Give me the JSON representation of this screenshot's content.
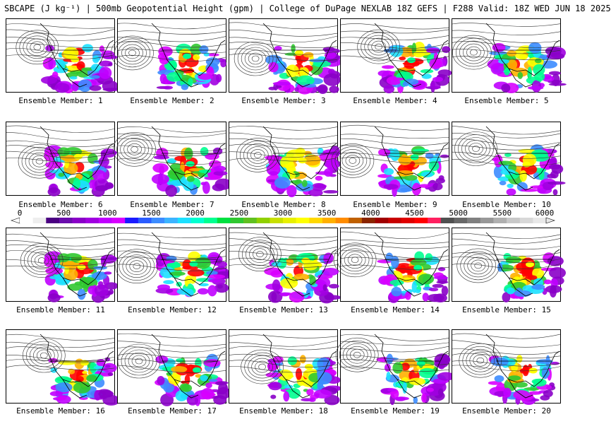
{
  "title": "SBCAPE (J kg⁻¹) | 500mb Geopotential Height (gpm) | College of DuPage NEXLAB 18Z GEFS | F288 Valid: 18Z WED JUN 18 2025",
  "members": [
    {
      "label": "Ensemble Member: 1"
    },
    {
      "label": "Ensemble Member: 2"
    },
    {
      "label": "Ensemble Member: 3"
    },
    {
      "label": "Ensemble Member: 4"
    },
    {
      "label": "Ensemble Member: 5"
    },
    {
      "label": "Ensemble Member: 6"
    },
    {
      "label": "Ensemble Member: 7"
    },
    {
      "label": "Ensemble Member: 8"
    },
    {
      "label": "Ensemble Member: 9"
    },
    {
      "label": "Ensemble Member: 10"
    },
    {
      "label": "Ensemble Member: 11"
    },
    {
      "label": "Ensemble Member: 12"
    },
    {
      "label": "Ensemble Member: 13"
    },
    {
      "label": "Ensemble Member: 14"
    },
    {
      "label": "Ensemble Member: 15"
    },
    {
      "label": "Ensemble Member: 16"
    },
    {
      "label": "Ensemble Member: 17"
    },
    {
      "label": "Ensemble Member: 18"
    },
    {
      "label": "Ensemble Member: 19"
    },
    {
      "label": "Ensemble Member: 20"
    }
  ],
  "colorbar": {
    "min": 0,
    "max": 6000,
    "ticks": [
      "0",
      "500",
      "1000",
      "1500",
      "2000",
      "2500",
      "3000",
      "3500",
      "4000",
      "4500",
      "5000",
      "5500",
      "6000"
    ],
    "colors": [
      "#ffffff",
      "#eeeeee",
      "#4b0082",
      "#6a0dad",
      "#8a00c8",
      "#a000e0",
      "#c000ff",
      "#d800ff",
      "#1a1aff",
      "#2a5cff",
      "#3c8cff",
      "#3cb4ff",
      "#1ce0ff",
      "#00ffd0",
      "#00ff90",
      "#00e040",
      "#30c830",
      "#60c020",
      "#90d000",
      "#c8e000",
      "#e8f000",
      "#ffff00",
      "#ffd800",
      "#ffb000",
      "#ff8c00",
      "#c06000",
      "#8b2500",
      "#a00000",
      "#c80000",
      "#e00000",
      "#ff0000",
      "#ff2060",
      "#505050",
      "#686868",
      "#808080",
      "#989898",
      "#b0b0b0",
      "#c8c8c8",
      "#d8d8d8",
      "#e8e8e8"
    ]
  }
}
